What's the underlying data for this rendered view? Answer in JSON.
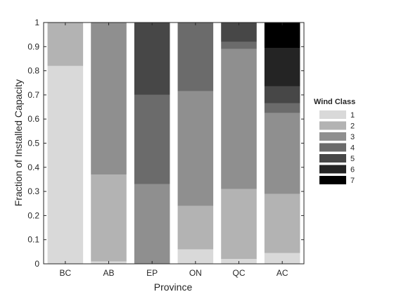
{
  "chart_data": {
    "type": "bar",
    "stacked": true,
    "categories": [
      "BC",
      "AB",
      "EP",
      "ON",
      "QC",
      "AC"
    ],
    "xlabel": "Province",
    "ylabel": "Fraction of Installed Capacity",
    "ylim": [
      0,
      1
    ],
    "yticks": [
      "0",
      "0.1",
      "0.2",
      "0.3",
      "0.4",
      "0.5",
      "0.6",
      "0.7",
      "0.8",
      "0.9",
      "1"
    ],
    "legend": {
      "title": "Wind Class",
      "position": "right"
    },
    "series": [
      {
        "name": "1",
        "color": "#d9d9d9",
        "values": [
          0.82,
          0.01,
          0.0,
          0.06,
          0.02,
          0.045
        ]
      },
      {
        "name": "2",
        "color": "#b3b3b3",
        "values": [
          0.18,
          0.36,
          0.0,
          0.18,
          0.29,
          0.245
        ]
      },
      {
        "name": "3",
        "color": "#8f8f8f",
        "values": [
          0.0,
          0.63,
          0.33,
          0.475,
          0.58,
          0.335
        ]
      },
      {
        "name": "4",
        "color": "#6b6b6b",
        "values": [
          0.0,
          0.0,
          0.37,
          0.285,
          0.03,
          0.04
        ]
      },
      {
        "name": "5",
        "color": "#474747",
        "values": [
          0.0,
          0.0,
          0.3,
          0.0,
          0.08,
          0.07
        ]
      },
      {
        "name": "6",
        "color": "#242424",
        "values": [
          0.0,
          0.0,
          0.0,
          0.0,
          0.0,
          0.16
        ]
      },
      {
        "name": "7",
        "color": "#000000",
        "values": [
          0.0,
          0.0,
          0.0,
          0.0,
          0.0,
          0.105
        ]
      }
    ]
  }
}
